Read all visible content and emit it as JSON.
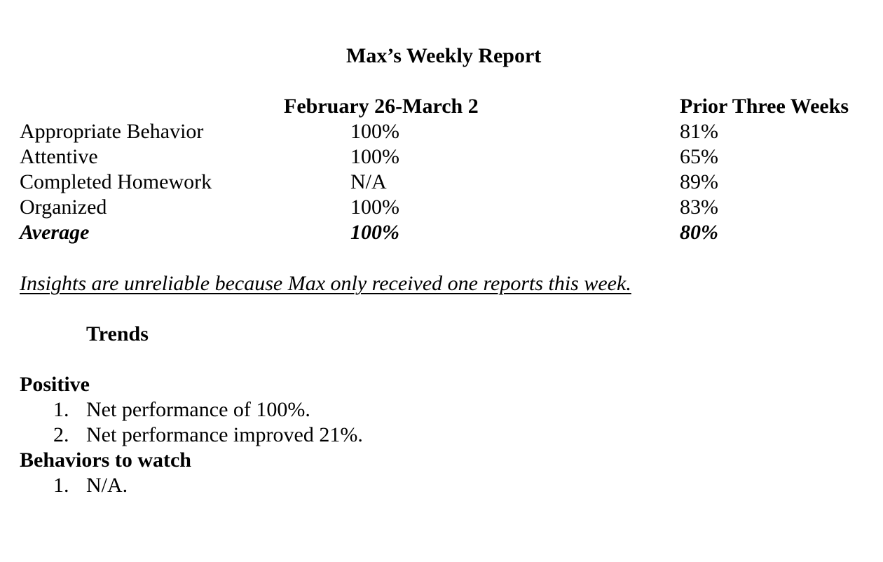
{
  "title": "Max’s Weekly Report",
  "table": {
    "col_current": "February 26-March 2",
    "col_prior": "Prior Three Weeks",
    "rows": [
      {
        "label": "Appropriate Behavior",
        "current": "100%",
        "prior": "81%"
      },
      {
        "label": "Attentive",
        "current": "100%",
        "prior": "65%"
      },
      {
        "label": "Completed Homework",
        "current": "N/A",
        "prior": "89%"
      },
      {
        "label": "Organized",
        "current": "100%",
        "prior": "83%"
      }
    ],
    "average": {
      "label": "Average",
      "current": "100%",
      "prior": "80%"
    }
  },
  "note": "Insights are unreliable because Max only received one reports this week.",
  "trends_heading": "Trends",
  "positive": {
    "heading": "Positive",
    "items": [
      {
        "num": "1.",
        "text": "Net performance of 100%."
      },
      {
        "num": "2.",
        "text": "Net performance improved 21%."
      }
    ]
  },
  "watch": {
    "heading": "Behaviors to watch",
    "items": [
      {
        "num": "1.",
        "text": "N/A."
      }
    ]
  }
}
